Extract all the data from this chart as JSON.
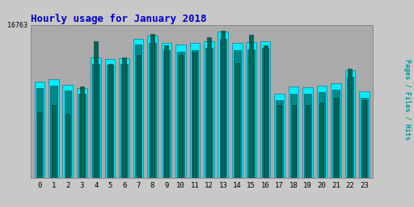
{
  "title": "Hourly usage for January 2018",
  "hours": [
    0,
    1,
    2,
    3,
    4,
    5,
    6,
    7,
    8,
    9,
    10,
    11,
    12,
    13,
    14,
    15,
    16,
    17,
    18,
    19,
    20,
    21,
    22,
    23
  ],
  "hits": [
    10500,
    10800,
    10200,
    9800,
    13200,
    13000,
    13100,
    15200,
    15600,
    14800,
    14600,
    14800,
    15000,
    16000,
    14800,
    14900,
    15000,
    9200,
    10000,
    9900,
    10100,
    10400,
    11800,
    9500
  ],
  "files": [
    9800,
    10100,
    9600,
    9200,
    12500,
    12400,
    12500,
    14600,
    14800,
    14000,
    13800,
    14000,
    14300,
    15200,
    14000,
    14100,
    14300,
    8500,
    9200,
    9200,
    9400,
    9700,
    11100,
    8800
  ],
  "pages": [
    7200,
    8000,
    7000,
    10000,
    15000,
    12500,
    13200,
    13500,
    15800,
    14500,
    13500,
    13700,
    15400,
    16100,
    12600,
    15700,
    14500,
    8000,
    8000,
    8000,
    8200,
    8800,
    12000,
    8500
  ],
  "ymax": 16763,
  "color_hits": "#00EEFF",
  "color_files": "#008888",
  "color_pages": "#006655",
  "background_color": "#C8C8C8",
  "plot_bg_color": "#AAAAAA",
  "title_color": "#0000CC",
  "ylabel_color": "#009999",
  "ylabel": "Pages / Files / Hits",
  "grid_color": "#999999"
}
